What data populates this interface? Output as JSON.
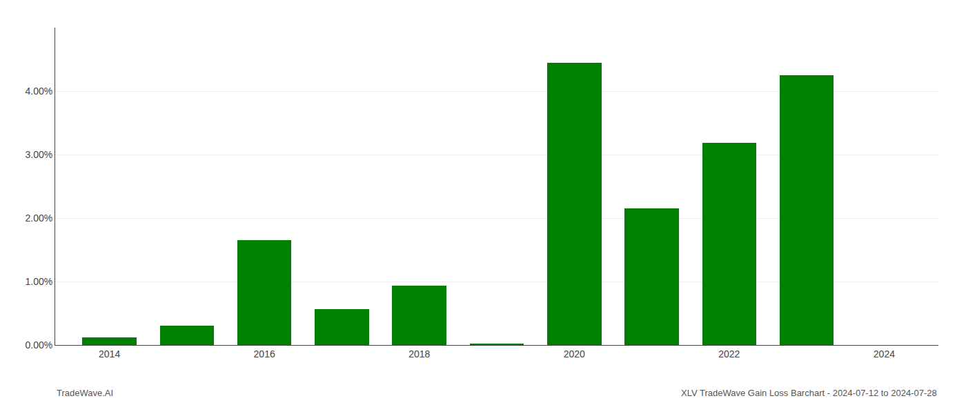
{
  "chart_data": {
    "type": "bar",
    "x": [
      2014,
      2015,
      2016,
      2017,
      2018,
      2019,
      2020,
      2021,
      2022,
      2023,
      2024
    ],
    "values": [
      0.0012,
      0.003,
      0.0165,
      0.0057,
      0.0093,
      0.0002,
      0.0445,
      0.0215,
      0.0318,
      0.0425,
      0.0
    ],
    "color": "#008000",
    "xlim": [
      2013.3,
      2024.7
    ],
    "xticks": [
      2014,
      2016,
      2018,
      2020,
      2022,
      2024
    ],
    "ylim": [
      0,
      0.05
    ],
    "yticks": [
      {
        "value": 0.0,
        "label": "0.00%"
      },
      {
        "value": 0.01,
        "label": "1.00%"
      },
      {
        "value": 0.02,
        "label": "2.00%"
      },
      {
        "value": 0.03,
        "label": "3.00%"
      },
      {
        "value": 0.04,
        "label": "4.00%"
      }
    ],
    "grid": true,
    "annotations": [
      "TradeWave.AI",
      "XLV TradeWave Gain Loss Barchart - 2024-07-12 to 2024-07-28"
    ]
  }
}
